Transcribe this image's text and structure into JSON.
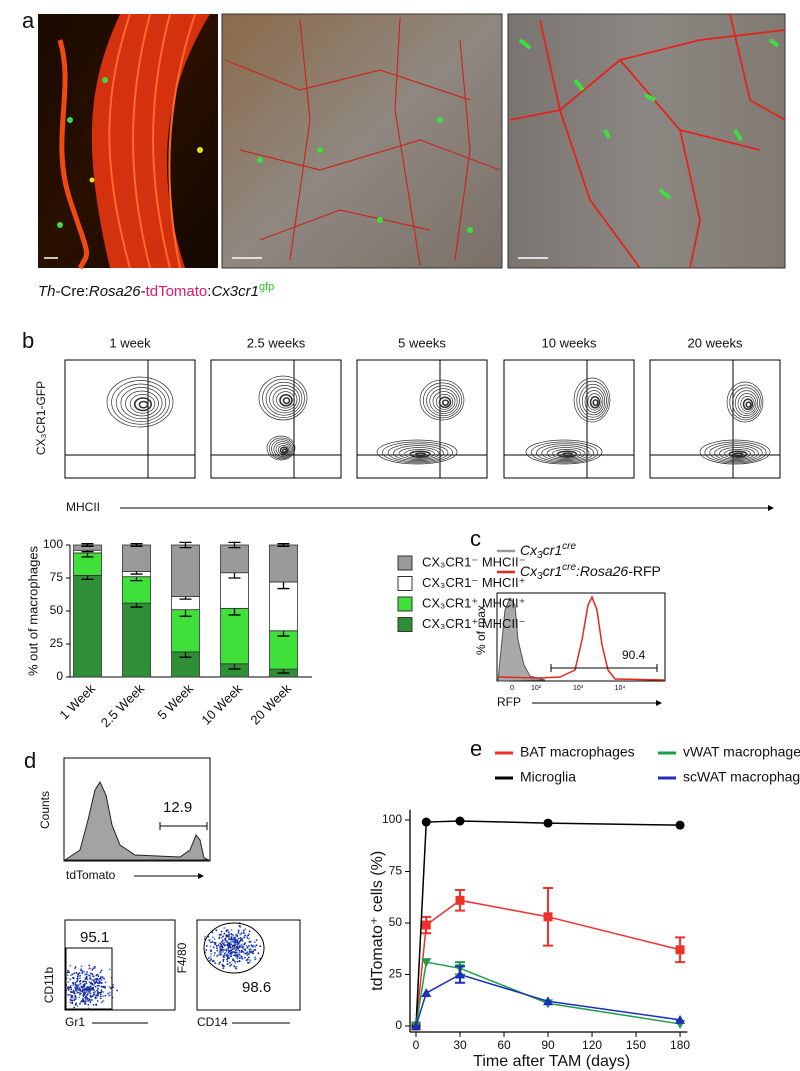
{
  "panel_a": {
    "label": "a",
    "caption": [
      "Th",
      "-Cre:",
      "Rosa26",
      "-",
      "tdTomato",
      ":",
      "Cx3cr1",
      "gfp"
    ]
  },
  "panel_b": {
    "label": "b",
    "timepoints": [
      "1 week",
      "2.5 weeks",
      "5 weeks",
      "10 weeks",
      "20 weeks"
    ],
    "y_label": "CX₃CR1-GFP",
    "x_label": "MHCII"
  },
  "panel_c": {
    "label": "c",
    "legend": [
      [
        "Cx",
        "3",
        "cr1",
        "cre"
      ],
      [
        "Cx",
        "3",
        "cr1",
        "cre",
        ":Rosa26",
        "-RFP"
      ]
    ],
    "y_label": "% of max",
    "x_label": "RFP",
    "gate": 90.4,
    "ticks": [
      "0",
      "10²",
      "10³",
      "10⁴"
    ]
  },
  "panel_d": {
    "label": "d",
    "hist": {
      "y_label": "Counts",
      "x_label": "tdTomato",
      "gate": 12.9
    },
    "dot1": {
      "y_label": "CD11b",
      "x_label": "Gr1",
      "gate": 95.1
    },
    "dot2": {
      "y_label": "F4/80",
      "x_label": "CD14",
      "gate": 98.6
    }
  },
  "panel_e": {
    "label": "e"
  },
  "chart_data": [
    {
      "type": "stacked_bar",
      "y_label": "% out of macrophages",
      "categories": [
        "1 Week",
        "2.5 Week",
        "5 Week",
        "10 Week",
        "20 Week"
      ],
      "ylim": [
        0,
        100
      ],
      "yticks": [
        0,
        25,
        50,
        75,
        100
      ],
      "series": [
        {
          "name": "CX₃CR1⁺ MHCII⁻",
          "color": "#2f8f37",
          "values": [
            77,
            56,
            19,
            10,
            6
          ],
          "errors": [
            3,
            3,
            4,
            4,
            3
          ]
        },
        {
          "name": "CX₃CR1⁺ MHCII⁺",
          "color": "#3fe03a",
          "values": [
            17,
            20,
            32,
            42,
            29
          ],
          "errors": [
            3,
            3,
            5,
            5,
            4
          ]
        },
        {
          "name": "CX₃CR1⁻ MHCII⁺",
          "color": "#ffffff",
          "values": [
            2,
            4,
            10,
            27,
            37
          ],
          "errors": [
            1,
            2,
            2,
            4,
            5
          ]
        },
        {
          "name": "CX₃CR1⁻ MHCII⁻",
          "color": "#9a9a9a",
          "values": [
            4,
            20,
            39,
            21,
            28
          ],
          "errors": [
            1,
            1,
            2,
            2,
            1
          ]
        }
      ]
    },
    {
      "type": "line",
      "x_label": "Time after TAM (days)",
      "y_label": "tdTomato⁺ cells (%)",
      "xlim": [
        0,
        185
      ],
      "xticks": [
        0,
        30,
        60,
        90,
        120,
        150,
        180
      ],
      "ylim": [
        0,
        105
      ],
      "yticks": [
        0,
        25,
        50,
        75,
        100
      ],
      "x": [
        0,
        7,
        30,
        90,
        180
      ],
      "series": [
        {
          "name": "BAT macrophages",
          "color": "#f0302a",
          "marker": "square",
          "values": [
            0,
            49,
            61,
            53,
            37
          ],
          "errors": [
            0,
            4,
            5,
            14,
            6
          ]
        },
        {
          "name": "Microglia",
          "color": "#000000",
          "marker": "circle",
          "values": [
            0,
            99,
            99.5,
            98.5,
            97.5
          ],
          "errors": [
            0,
            0.5,
            0.5,
            0.5,
            0.5
          ]
        },
        {
          "name": "vWAT macrophages",
          "color": "#1f9e4a",
          "marker": "triangle-down",
          "values": [
            0,
            31,
            28,
            11,
            1
          ],
          "errors": [
            0,
            1,
            3,
            1,
            0.5
          ]
        },
        {
          "name": "scWAT macrophages",
          "color": "#1c2fb8",
          "marker": "triangle",
          "values": [
            0,
            16,
            25,
            12,
            3
          ],
          "errors": [
            0,
            1,
            4,
            1,
            0.5
          ]
        }
      ]
    }
  ]
}
